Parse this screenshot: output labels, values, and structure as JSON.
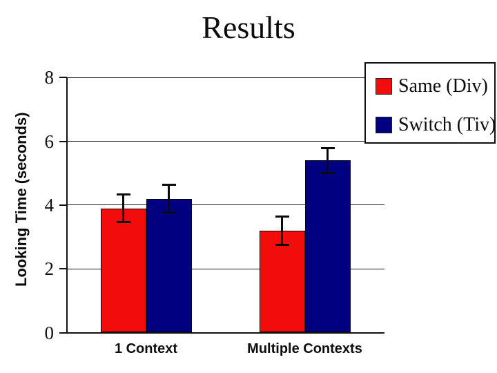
{
  "header": {
    "title": "Results"
  },
  "chart_data": {
    "type": "bar",
    "title": "Results",
    "xlabel": "",
    "ylabel": "Looking Time (seconds)",
    "categories": [
      "1 Context",
      "Multiple Contexts"
    ],
    "yticks": [
      0,
      2,
      4,
      6,
      8
    ],
    "ylim": [
      0,
      8
    ],
    "grid": true,
    "legend_position": "top-right",
    "series": [
      {
        "name": "Same (Div)",
        "color": "#f20c0c",
        "values": [
          3.9,
          3.2
        ],
        "errors": [
          0.45,
          0.45
        ]
      },
      {
        "name": "Switch (Tiv)",
        "color": "#000080",
        "values": [
          4.2,
          5.4
        ],
        "errors": [
          0.45,
          0.4
        ]
      }
    ]
  }
}
